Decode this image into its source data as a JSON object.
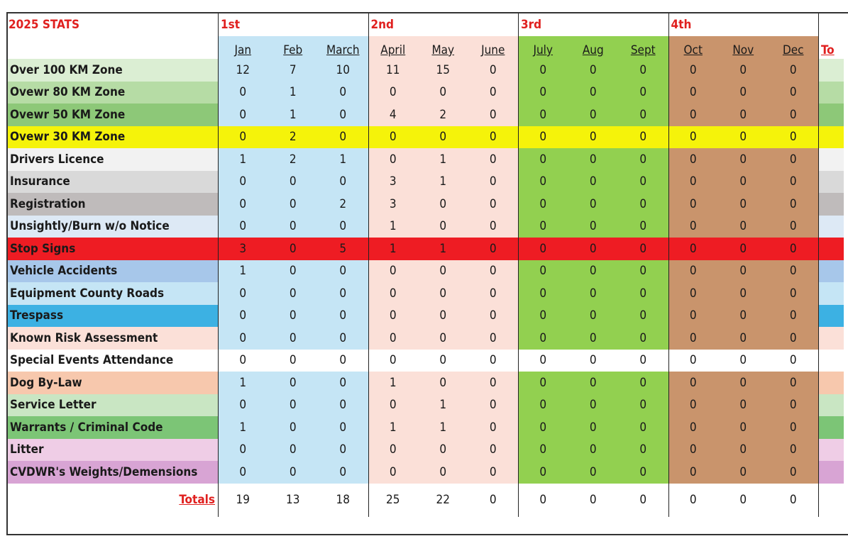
{
  "title": "2025 STATS",
  "quarters": [
    "1st",
    "2nd",
    "3rd",
    "4th"
  ],
  "months": [
    "Jan",
    "Feb",
    "March",
    "April",
    "May",
    "June",
    "July",
    "Aug",
    "Sept",
    "Oct",
    "Nov",
    "Dec"
  ],
  "total_header": "To",
  "colors": {
    "q1": "#c5e5f5",
    "q2": "#fbe0d8",
    "q3": "#92d050",
    "q4": "#c9946c",
    "red_text": "#e0201f"
  },
  "rows": [
    {
      "label": "Over 100 KM Zone",
      "values": [
        "12",
        "7",
        "10",
        "11",
        "15",
        "0",
        "0",
        "0",
        "0",
        "0",
        "0",
        "0"
      ],
      "label_color": "#dbeed3",
      "row_color": null,
      "total_color": "#dbeed3"
    },
    {
      "label": "Ovewr 80 KM Zone",
      "values": [
        "0",
        "1",
        "0",
        "0",
        "0",
        "0",
        "0",
        "0",
        "0",
        "0",
        "0",
        "0"
      ],
      "label_color": "#b6dca5",
      "row_color": null,
      "total_color": "#b6dca5"
    },
    {
      "label": "Ovewr 50 KM Zone",
      "values": [
        "0",
        "1",
        "0",
        "4",
        "2",
        "0",
        "0",
        "0",
        "0",
        "0",
        "0",
        "0"
      ],
      "label_color": "#8dc878",
      "row_color": null,
      "total_color": "#8dc878"
    },
    {
      "label": "Ovewr 30 KM Zone",
      "values": [
        "0",
        "2",
        "0",
        "0",
        "0",
        "0",
        "0",
        "0",
        "0",
        "0",
        "0",
        "0"
      ],
      "label_color": "#f5f30a",
      "row_color": "#f5f30a",
      "total_color": "#f5f30a"
    },
    {
      "label": "Drivers Licence",
      "values": [
        "1",
        "2",
        "1",
        "0",
        "1",
        "0",
        "0",
        "0",
        "0",
        "0",
        "0",
        "0"
      ],
      "label_color": "#f2f2f2",
      "row_color": null,
      "total_color": "#f2f2f2"
    },
    {
      "label": "Insurance",
      "values": [
        "0",
        "0",
        "0",
        "3",
        "1",
        "0",
        "0",
        "0",
        "0",
        "0",
        "0",
        "0"
      ],
      "label_color": "#d9d9d9",
      "row_color": null,
      "total_color": "#d9d9d9"
    },
    {
      "label": "Registration",
      "values": [
        "0",
        "0",
        "2",
        "3",
        "0",
        "0",
        "0",
        "0",
        "0",
        "0",
        "0",
        "0"
      ],
      "label_color": "#bfbbbb",
      "row_color": null,
      "total_color": "#bfbbbb"
    },
    {
      "label": "Unsightly/Burn w/o Notice",
      "values": [
        "0",
        "0",
        "0",
        "1",
        "0",
        "0",
        "0",
        "0",
        "0",
        "0",
        "0",
        "0"
      ],
      "label_color": "#dde9f5",
      "row_color": null,
      "total_color": "#dde9f5"
    },
    {
      "label": "Stop Signs",
      "values": [
        "3",
        "0",
        "5",
        "1",
        "1",
        "0",
        "0",
        "0",
        "0",
        "0",
        "0",
        "0"
      ],
      "label_color": "#ee1c23",
      "row_color": "#ee1c23",
      "total_color": "#ee1c23"
    },
    {
      "label": "Vehicle Accidents",
      "values": [
        "1",
        "0",
        "0",
        "0",
        "0",
        "0",
        "0",
        "0",
        "0",
        "0",
        "0",
        "0"
      ],
      "label_color": "#a7c7ea",
      "row_color": null,
      "total_color": "#a7c7ea"
    },
    {
      "label": "Equipment County Roads",
      "values": [
        "0",
        "0",
        "0",
        "0",
        "0",
        "0",
        "0",
        "0",
        "0",
        "0",
        "0",
        "0"
      ],
      "label_color": "#c5e5f5",
      "row_color": null,
      "total_color": "#c5e5f5"
    },
    {
      "label": "Trespass",
      "values": [
        "0",
        "0",
        "0",
        "0",
        "0",
        "0",
        "0",
        "0",
        "0",
        "0",
        "0",
        "0"
      ],
      "label_color": "#3cb1e3",
      "row_color": null,
      "total_color": "#3cb1e3"
    },
    {
      "label": "Known Risk Assessment",
      "values": [
        "0",
        "0",
        "0",
        "0",
        "0",
        "0",
        "0",
        "0",
        "0",
        "0",
        "0",
        "0"
      ],
      "label_color": "#fbe0d8",
      "row_color": null,
      "total_color": "#fbe0d8"
    },
    {
      "label": "Special Events Attendance",
      "values": [
        "0",
        "0",
        "0",
        "0",
        "0",
        "0",
        "0",
        "0",
        "0",
        "0",
        "0",
        "0"
      ],
      "label_color": "#ffffff",
      "row_color": "#ffffff",
      "total_color": "#ffffff"
    },
    {
      "label": "Dog By-Law",
      "values": [
        "1",
        "0",
        "0",
        "1",
        "0",
        "0",
        "0",
        "0",
        "0",
        "0",
        "0",
        "0"
      ],
      "label_color": "#f7c8ad",
      "row_color": null,
      "total_color": "#f7c8ad"
    },
    {
      "label": "Service Letter",
      "values": [
        "0",
        "0",
        "0",
        "0",
        "1",
        "0",
        "0",
        "0",
        "0",
        "0",
        "0",
        "0"
      ],
      "label_color": "#c9e6c3",
      "row_color": null,
      "total_color": "#c9e6c3"
    },
    {
      "label": "Warrants / Criminal Code",
      "values": [
        "1",
        "0",
        "0",
        "1",
        "1",
        "0",
        "0",
        "0",
        "0",
        "0",
        "0",
        "0"
      ],
      "label_color": "#7cc576",
      "row_color": null,
      "total_color": "#7cc576"
    },
    {
      "label": "Litter",
      "values": [
        "0",
        "0",
        "0",
        "0",
        "0",
        "0",
        "0",
        "0",
        "0",
        "0",
        "0",
        "0"
      ],
      "label_color": "#efcde6",
      "row_color": null,
      "total_color": "#efcde6"
    },
    {
      "label": "CVDWR's Weights/Demensions",
      "values": [
        "0",
        "0",
        "0",
        "0",
        "0",
        "0",
        "0",
        "0",
        "0",
        "0",
        "0",
        "0"
      ],
      "label_color": "#d8a4d4",
      "row_color": null,
      "total_color": "#d8a4d4"
    }
  ],
  "totals_label": "Totals",
  "totals": [
    "19",
    "13",
    "18",
    "25",
    "22",
    "0",
    "0",
    "0",
    "0",
    "0",
    "0",
    "0"
  ]
}
